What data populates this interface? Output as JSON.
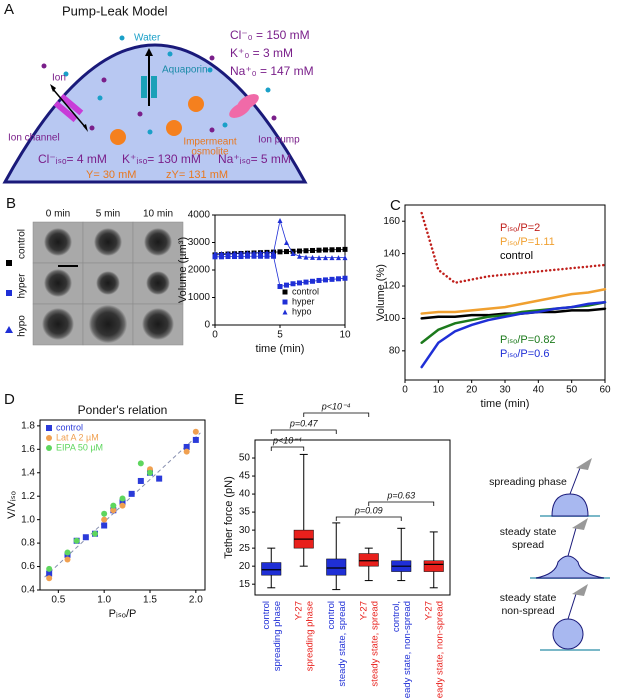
{
  "panel_labels": [
    "A",
    "B",
    "C",
    "D",
    "E"
  ],
  "diagram": {
    "title": "Pump-Leak Model",
    "water": "Water",
    "aquaporin": "Aquaporin",
    "ion": "Ion",
    "ion_channel": "Ion channel",
    "osmolite": [
      "Impermeant",
      "osmolite"
    ],
    "ion_pump": "Ion pump",
    "outside": [
      "Cl⁻₀ = 150 mM",
      "K⁺₀ = 3 mM",
      "Na⁺₀ = 147 mM"
    ],
    "inside": [
      "Cl⁻ᵢₛₒ= 4 mM",
      "K⁺ᵢₛₒ= 130 mM",
      "Na⁺ᵢₛₒ= 5 mM"
    ],
    "impermeant": [
      "Y= 30 mM",
      "zY= 131 mM"
    ]
  },
  "images": {
    "columns": [
      "0 min",
      "5 min",
      "10 min"
    ],
    "rows": [
      "control",
      "hyper",
      "hypo"
    ]
  },
  "schematic": [
    [
      "spreading phase"
    ],
    [
      "steady state",
      "spread"
    ],
    [
      "steady state",
      "non-spread"
    ]
  ],
  "chart_data": [
    {
      "type": "line",
      "xlabel": "time (min)",
      "ylabel": "Volume (µm³)",
      "xlim": [
        0,
        10
      ],
      "ylim": [
        0,
        4000
      ],
      "xticks": [
        0,
        5,
        10
      ],
      "yticks": [
        0,
        1000,
        2000,
        3000,
        4000
      ],
      "legend": "lower right",
      "x": [
        0,
        0.5,
        1,
        1.5,
        2,
        2.5,
        3,
        3.5,
        4,
        4.5,
        5,
        5.5,
        6,
        6.5,
        7,
        7.5,
        8,
        8.5,
        9,
        9.5,
        10
      ],
      "series": [
        {
          "name": "control",
          "color": "#000000",
          "marker": "square",
          "values": [
            2550,
            2560,
            2580,
            2590,
            2600,
            2610,
            2620,
            2630,
            2640,
            2650,
            2660,
            2670,
            2680,
            2690,
            2700,
            2710,
            2720,
            2730,
            2735,
            2740,
            2750
          ]
        },
        {
          "name": "hyper",
          "color": "#1f2fd6",
          "marker": "square",
          "values": [
            2480,
            2480,
            2490,
            2490,
            2490,
            2500,
            2500,
            2500,
            2500,
            2500,
            1400,
            1450,
            1500,
            1530,
            1560,
            1590,
            1620,
            1640,
            1660,
            1680,
            1700
          ]
        },
        {
          "name": "hypo",
          "color": "#1f2fd6",
          "marker": "triangle",
          "values": [
            2600,
            2600,
            2610,
            2610,
            2620,
            2620,
            2620,
            2630,
            2630,
            2630,
            3800,
            3000,
            2600,
            2500,
            2470,
            2460,
            2450,
            2450,
            2450,
            2450,
            2450
          ]
        }
      ]
    },
    {
      "type": "line",
      "xlabel": "time (min)",
      "ylabel": "Volume (%)",
      "xlim": [
        0,
        60
      ],
      "ylim": [
        62,
        170
      ],
      "xticks": [
        0,
        10,
        20,
        30,
        40,
        50,
        60
      ],
      "yticks": [
        80,
        100,
        120,
        140,
        160
      ],
      "x": [
        5,
        10,
        15,
        20,
        25,
        30,
        35,
        40,
        45,
        50,
        55,
        60
      ],
      "series": [
        {
          "name": "Pᵢₛₒ/P=2",
          "color": "#c0201c",
          "style": "dotted",
          "values": [
            165,
            130,
            122,
            124,
            126,
            127,
            128,
            129,
            130,
            131,
            132,
            133
          ]
        },
        {
          "name": "Pᵢₛₒ/P=1.11",
          "color": "#f0a030",
          "values": [
            103,
            104,
            104,
            105,
            106,
            107,
            109,
            111,
            113,
            115,
            116,
            118
          ]
        },
        {
          "name": "control",
          "color": "#000000",
          "values": [
            100,
            101,
            101,
            102,
            102,
            103,
            103,
            104,
            104,
            105,
            105,
            106
          ]
        },
        {
          "name": "Pᵢₛₒ/P=0.82",
          "color": "#1c7a1c",
          "values": [
            85,
            93,
            97,
            99,
            101,
            102,
            104,
            105,
            106,
            107,
            108,
            110
          ]
        },
        {
          "name": "Pᵢₛₒ/P=0.6",
          "color": "#1f2fd6",
          "values": [
            70,
            85,
            92,
            96,
            99,
            101,
            103,
            104,
            106,
            107,
            109,
            110
          ]
        }
      ]
    },
    {
      "type": "scatter",
      "title": "Ponder's relation",
      "xlabel": "Pᵢₛₒ/P",
      "ylabel": "V/Vᵢₛₒ",
      "xlim": [
        0.3,
        2.1
      ],
      "ylim": [
        0.4,
        1.85
      ],
      "xticks": [
        0.5,
        {
          "value": 1,
          "label": "1.0"
        },
        1.5,
        {
          "value": 2,
          "label": "2.0"
        }
      ],
      "yticks": [
        0.4,
        0.6,
        0.8,
        {
          "value": 1,
          "label": "1.0"
        },
        1.2,
        1.4,
        1.6,
        1.8
      ],
      "legend": "upper left",
      "fit": {
        "x": [
          0.35,
          2.05
        ],
        "y": [
          0.51,
          1.74
        ]
      },
      "series": [
        {
          "name": "control",
          "color": "#2b3bd9",
          "marker": "square",
          "x": [
            0.4,
            0.6,
            0.7,
            0.8,
            0.9,
            1.0,
            1.1,
            1.2,
            1.3,
            1.4,
            1.5,
            1.6,
            1.9,
            2.0
          ],
          "values": [
            0.54,
            0.7,
            0.82,
            0.85,
            0.88,
            0.95,
            1.08,
            1.15,
            1.22,
            1.33,
            1.4,
            1.35,
            1.62,
            1.68
          ]
        },
        {
          "name": "Lat A 2 µM",
          "color": "#f0a050",
          "marker": "circle",
          "x": [
            0.4,
            0.6,
            1.0,
            1.1,
            1.2,
            1.5,
            1.9,
            2.0
          ],
          "values": [
            0.5,
            0.66,
            1.0,
            1.08,
            1.12,
            1.43,
            1.58,
            1.75
          ]
        },
        {
          "name": "EIPA 50 µM",
          "color": "#5ed65e",
          "marker": "circle",
          "x": [
            0.4,
            0.6,
            0.7,
            0.9,
            1.0,
            1.1,
            1.2,
            1.4,
            1.5
          ],
          "values": [
            0.58,
            0.72,
            0.82,
            0.88,
            1.05,
            1.12,
            1.18,
            1.48,
            1.4
          ]
        }
      ]
    },
    {
      "type": "box",
      "ylabel": "Tether force (pN)",
      "ylim": [
        12,
        55
      ],
      "yticks": [
        15,
        20,
        25,
        30,
        35,
        40,
        45,
        50
      ],
      "categories": [
        [
          "control",
          "spreading phase"
        ],
        [
          "Y-27",
          "spreading phase"
        ],
        [
          "control",
          "steady state, spread"
        ],
        [
          "Y-27",
          "steady state, spread"
        ],
        [
          "control,",
          "steady state, non-spread"
        ],
        [
          "Y-27",
          "steady state, non-spread"
        ]
      ],
      "colors": [
        "#1f2fd6",
        "#e8201c",
        "#1f2fd6",
        "#e8201c",
        "#1f2fd6",
        "#e8201c"
      ],
      "min": [
        14,
        20,
        13.5,
        16,
        16,
        14
      ],
      "q1": [
        17.5,
        25,
        17.5,
        20,
        18.5,
        18.5
      ],
      "median": [
        19,
        27.5,
        19.5,
        21.5,
        20,
        20.5
      ],
      "q3": [
        21,
        30,
        22,
        23.5,
        21.5,
        21.5
      ],
      "max": [
        25,
        51,
        32,
        25,
        30.5,
        29.5
      ],
      "annotations": [
        "p<10⁻⁴",
        "p=0.47",
        "p<10⁻⁴",
        "p=0.09",
        "p=0.63"
      ]
    }
  ]
}
